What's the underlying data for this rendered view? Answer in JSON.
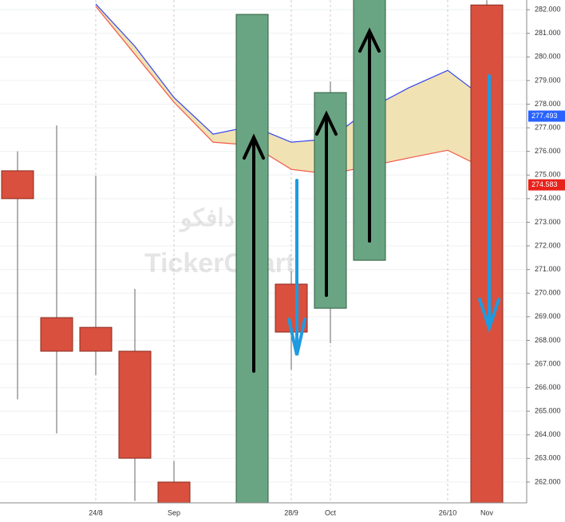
{
  "chart_data": {
    "type": "candlestick",
    "categories": [
      null,
      null,
      "24/8",
      null,
      "Sep",
      null,
      null,
      "28/9",
      "Oct",
      null,
      null,
      "26/10",
      "Nov"
    ],
    "open": [
      275.18,
      268.96,
      268.55,
      267.54,
      262.0,
      null,
      261.1,
      270.38,
      269.36,
      271.39,
      null,
      null,
      282.2
    ],
    "high": [
      276.0,
      277.1,
      274.97,
      270.18,
      262.88,
      null,
      281.8,
      270.92,
      278.96,
      282.5,
      null,
      null,
      282.4
    ],
    "low": [
      265.5,
      264.06,
      266.53,
      261.2,
      261.1,
      null,
      261.1,
      266.76,
      267.88,
      271.39,
      null,
      null,
      261.1
    ],
    "close": [
      274.0,
      267.54,
      267.54,
      263.01,
      261.1,
      null,
      281.8,
      268.35,
      278.49,
      282.5,
      null,
      null,
      261.1
    ],
    "up_color": "#6aa583",
    "down_color": "#d9503f",
    "series": [
      {
        "color": "#3344ee",
        "values": [
          null,
          null,
          282.24,
          280.45,
          278.28,
          276.73,
          277.07,
          276.39,
          276.53,
          277.81,
          278.69,
          279.43,
          278.18
        ]
      },
      {
        "color": "#f05a4a",
        "values": [
          null,
          null,
          282.14,
          280.11,
          278.08,
          276.39,
          276.26,
          275.24,
          275.04,
          275.38,
          275.72,
          276.05,
          275.24
        ]
      }
    ],
    "cloud_color": "#f1e2b4",
    "price_labels": [
      {
        "value": 277.493,
        "color": "#2962ff"
      },
      {
        "value": 274.583,
        "color": "#e8221b"
      }
    ],
    "watermark": [
      "دافكو",
      "TickerChart"
    ],
    "ylim": [
      261.12,
      282.41
    ],
    "yticks": [
      {
        "value": 262,
        "label": "262.000"
      },
      {
        "value": 263,
        "label": "263.000"
      },
      {
        "value": 264,
        "label": "264.000"
      },
      {
        "value": 265,
        "label": "265.000"
      },
      {
        "value": 266,
        "label": "266.000"
      },
      {
        "value": 267,
        "label": "267.000"
      },
      {
        "value": 268,
        "label": "268.000"
      },
      {
        "value": 269,
        "label": "269.000"
      },
      {
        "value": 270,
        "label": "270.000"
      },
      {
        "value": 271,
        "label": "271.000"
      },
      {
        "value": 272,
        "label": "272.000"
      },
      {
        "value": 273,
        "label": "273.000"
      },
      {
        "value": 274,
        "label": "274.000"
      },
      {
        "value": 275,
        "label": "275.000"
      },
      {
        "value": 276,
        "label": "276.000"
      },
      {
        "value": 277,
        "label": "277.000"
      },
      {
        "value": 278,
        "label": "278.000"
      },
      {
        "value": 279,
        "label": "279.000"
      },
      {
        "value": 280,
        "label": "280.000"
      },
      {
        "value": 281,
        "label": "281.000"
      },
      {
        "value": 282,
        "label": "282.000"
      }
    ],
    "grid": true
  }
}
